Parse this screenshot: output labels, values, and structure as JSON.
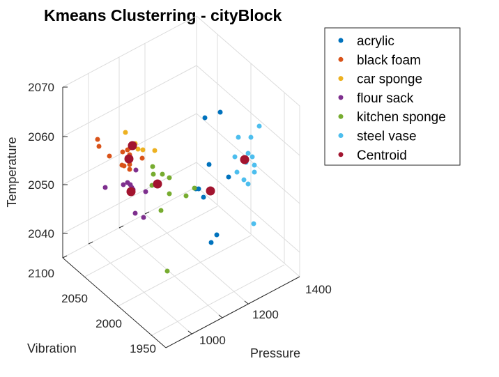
{
  "chart_data": {
    "type": "scatter3d",
    "title": "Kmeans Clusterring - cityBlock",
    "xlabel": "Pressure",
    "ylabel": "Vibration",
    "zlabel": "Temperature",
    "xticks": [
      "1000",
      "1200",
      "1400"
    ],
    "yticks": [
      "1950",
      "2000",
      "2050",
      "2100"
    ],
    "zticks": [
      "2040",
      "2050",
      "2060",
      "2070"
    ],
    "legend_position": "top-right",
    "grid": true,
    "series": [
      {
        "name": "acrylic",
        "color": "#0072BD",
        "points": [
          [
            294,
            169
          ],
          [
            316,
            161
          ],
          [
            300,
            236
          ],
          [
            328,
            254
          ],
          [
            285,
            271
          ],
          [
            281,
            271
          ],
          [
            292,
            283
          ],
          [
            311,
            337
          ],
          [
            303,
            348
          ]
        ]
      },
      {
        "name": "black foam",
        "color": "#D95319",
        "points": [
          [
            140,
            200
          ],
          [
            142,
            210
          ],
          [
            157,
            224
          ],
          [
            176,
            218
          ],
          [
            183,
            215
          ],
          [
            186,
            222
          ],
          [
            187,
            212
          ],
          [
            190,
            207
          ],
          [
            204,
            227
          ],
          [
            175,
            237
          ],
          [
            178,
            238
          ],
          [
            186,
            243
          ],
          [
            185,
            226
          ],
          [
            186,
            236
          ]
        ]
      },
      {
        "name": "car sponge",
        "color": "#EDB120",
        "points": [
          [
            180,
            190
          ],
          [
            194,
            206
          ],
          [
            198,
            214
          ],
          [
            205,
            215
          ],
          [
            222,
            216
          ]
        ]
      },
      {
        "name": "flour sack",
        "color": "#7E2F8E",
        "points": [
          [
            151,
            269
          ],
          [
            177,
            265
          ],
          [
            183,
            262
          ],
          [
            187,
            265
          ],
          [
            189,
            269
          ],
          [
            191,
            272
          ],
          [
            195,
            244
          ],
          [
            209,
            275
          ],
          [
            194,
            306
          ],
          [
            206,
            312
          ]
        ]
      },
      {
        "name": "kitchen sponge",
        "color": "#77AC30",
        "points": [
          [
            219,
            239
          ],
          [
            220,
            250
          ],
          [
            233,
            250
          ],
          [
            243,
            255
          ],
          [
            218,
            266
          ],
          [
            225,
            266
          ],
          [
            243,
            278
          ],
          [
            267,
            281
          ],
          [
            279,
            270
          ],
          [
            231,
            302
          ],
          [
            240,
            389
          ]
        ]
      },
      {
        "name": "steel vase",
        "color": "#4DBEEE",
        "points": [
          [
            342,
            197
          ],
          [
            360,
            197
          ],
          [
            372,
            181
          ],
          [
            356,
            220
          ],
          [
            337,
            225
          ],
          [
            362,
            225
          ],
          [
            353,
            233
          ],
          [
            365,
            237
          ],
          [
            365,
            247
          ],
          [
            340,
            247
          ],
          [
            350,
            258
          ],
          [
            356,
            264
          ],
          [
            364,
            321
          ]
        ]
      },
      {
        "name": "Centroid",
        "color": "#A2142F",
        "size": "large",
        "points": [
          [
            190,
            209
          ],
          [
            185,
            228
          ],
          [
            188,
            275
          ],
          [
            226,
            264
          ],
          [
            302,
            274
          ],
          [
            351,
            229
          ]
        ]
      }
    ]
  }
}
